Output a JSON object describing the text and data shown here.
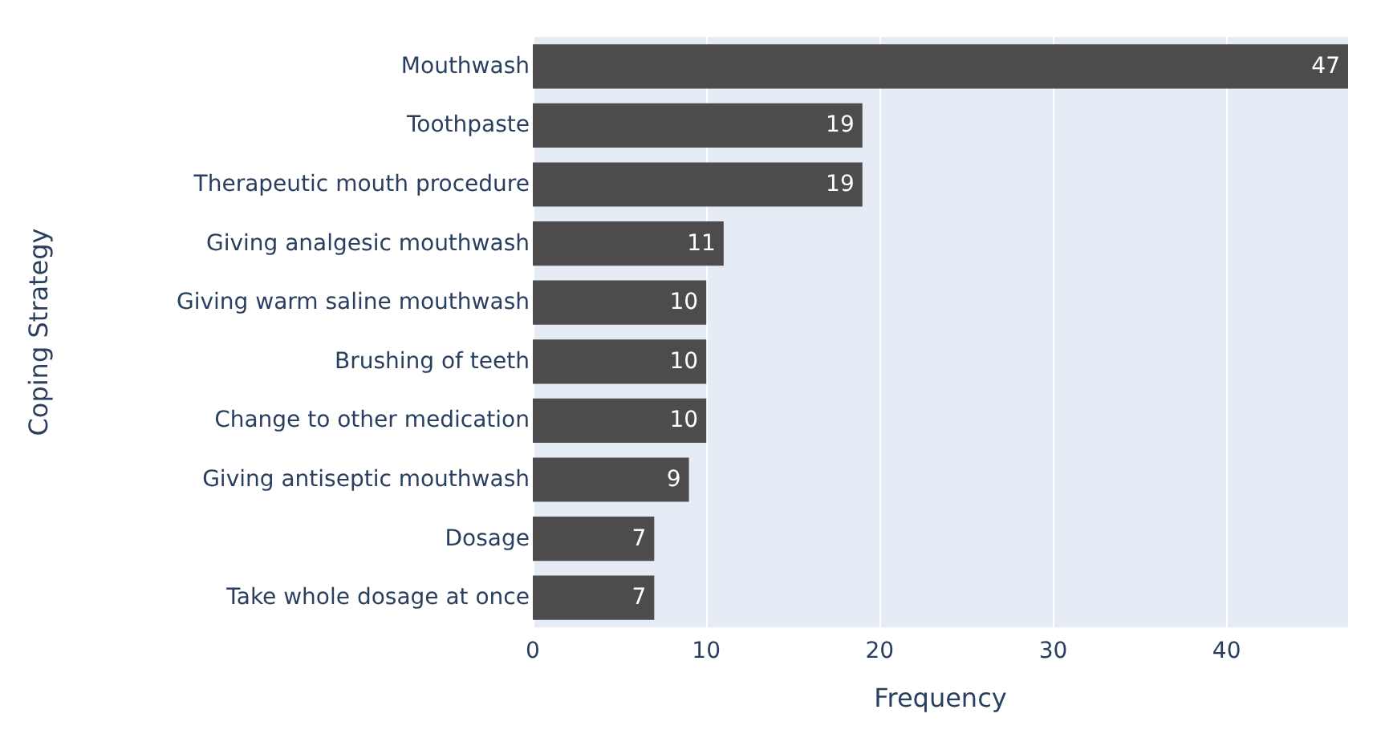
{
  "chart_data": {
    "type": "bar",
    "orientation": "horizontal",
    "xlabel": "Frequency",
    "ylabel": "Coping Strategy",
    "categories": [
      "Mouthwash",
      "Toothpaste",
      "Therapeutic mouth procedure",
      "Giving analgesic mouthwash",
      "Giving warm saline mouthwash",
      "Brushing of teeth",
      "Change to other medication",
      "Giving antiseptic mouthwash",
      "Dosage",
      "Take whole dosage at once"
    ],
    "values": [
      47,
      19,
      19,
      11,
      10,
      10,
      10,
      9,
      7,
      7
    ],
    "color": "#4d4b4b",
    "xlim": [
      0,
      47
    ],
    "xticks": [
      0,
      10,
      20,
      30,
      40
    ],
    "grid": "x",
    "data_labels": true
  }
}
